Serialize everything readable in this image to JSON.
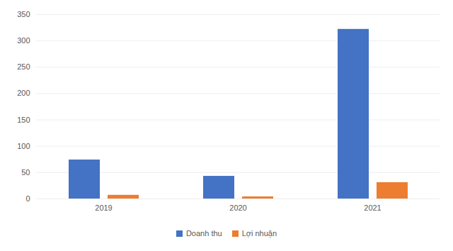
{
  "chart_data": {
    "type": "bar",
    "categories": [
      "2019",
      "2020",
      "2021"
    ],
    "series": [
      {
        "name": "Doanh thu",
        "color": "#4472c4",
        "values": [
          74,
          43,
          322
        ]
      },
      {
        "name": "Lợi nhuận",
        "color": "#ed7d31",
        "values": [
          7,
          4,
          31
        ]
      }
    ],
    "ylim": [
      0,
      350
    ],
    "yticks": [
      0,
      50,
      100,
      150,
      200,
      250,
      300,
      350
    ],
    "grid": true,
    "legend": "bottom"
  }
}
